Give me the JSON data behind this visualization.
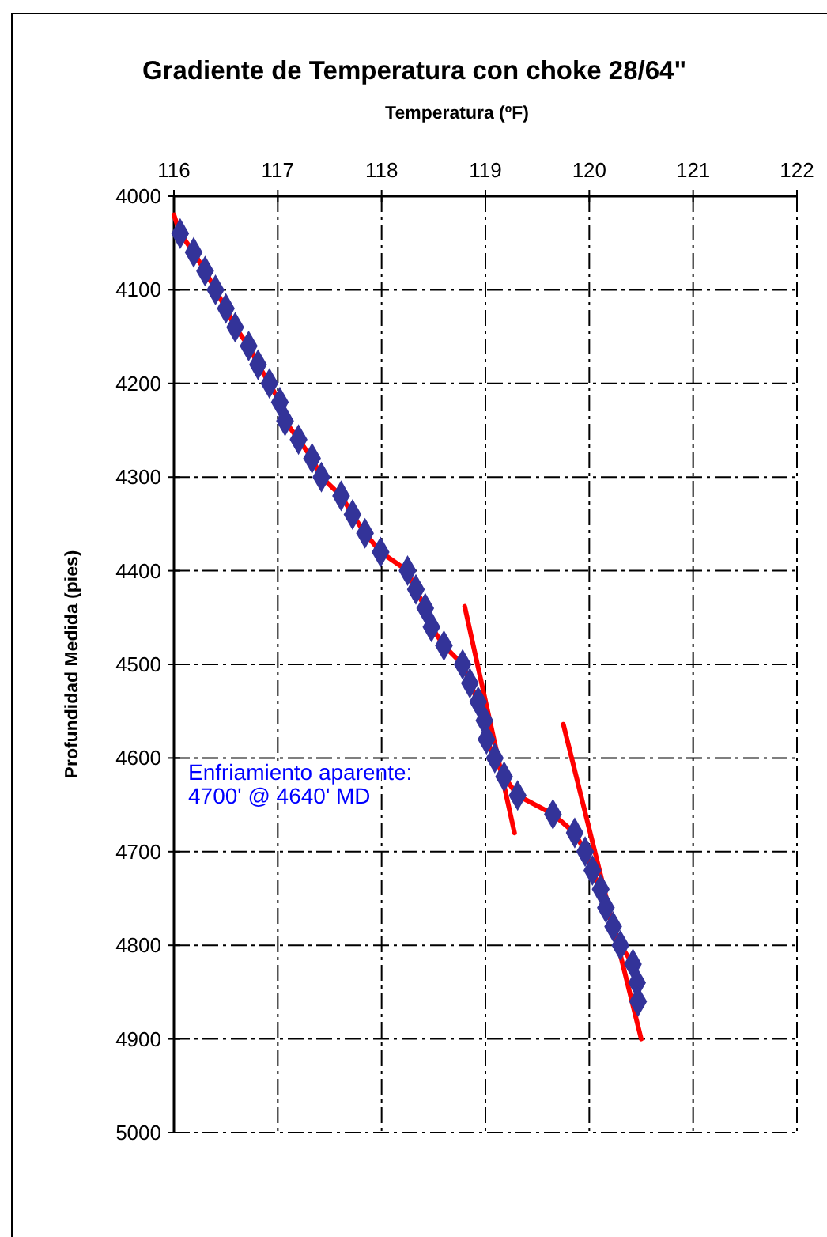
{
  "chart_data": {
    "type": "line",
    "title": "Gradiente de Temperatura con choke 28/64\"",
    "xlabel": "Temperatura (ºF)",
    "ylabel": "Profundidad Medida (pies)",
    "xlim": [
      116,
      122
    ],
    "xticks": [
      116,
      117,
      118,
      119,
      120,
      121,
      122
    ],
    "ylim": [
      5000,
      4000
    ],
    "yticks": [
      4000,
      4100,
      4200,
      4300,
      4400,
      4500,
      4600,
      4700,
      4800,
      4900,
      5000
    ],
    "grid": true,
    "annotations": [
      "Enfriamiento aparente:\n4700' @ 4640' MD"
    ],
    "series": [
      {
        "color": "#ff0000",
        "marker": "none",
        "x": [
          116.0,
          116.06,
          116.19,
          116.3,
          116.4,
          116.5,
          116.59,
          116.72,
          116.81,
          116.92,
          117.02,
          117.07,
          117.2,
          117.33,
          117.42,
          117.61,
          117.72,
          117.84,
          117.99,
          118.25,
          118.33,
          118.42,
          118.48,
          118.6,
          118.78,
          118.85,
          118.93,
          118.99,
          119.01,
          119.09,
          119.18,
          119.31,
          119.65,
          119.86,
          119.96,
          120.03,
          120.11,
          120.16,
          120.23,
          120.3,
          120.42,
          120.46,
          120.47
        ],
        "values": [
          4020,
          4040,
          4060,
          4080,
          4100,
          4120,
          4140,
          4160,
          4180,
          4200,
          4220,
          4240,
          4260,
          4280,
          4300,
          4320,
          4340,
          4360,
          4380,
          4400,
          4420,
          4440,
          4460,
          4480,
          4500,
          4520,
          4540,
          4560,
          4580,
          4600,
          4620,
          4640,
          4660,
          4680,
          4700,
          4720,
          4740,
          4760,
          4780,
          4800,
          4820,
          4840,
          4860
        ]
      },
      {
        "type": "scatter",
        "color": "#333399",
        "marker": "diamond",
        "x": [
          116.06,
          116.19,
          116.3,
          116.4,
          116.5,
          116.59,
          116.72,
          116.81,
          116.92,
          117.02,
          117.07,
          117.2,
          117.33,
          117.42,
          117.61,
          117.72,
          117.84,
          117.99,
          118.25,
          118.33,
          118.42,
          118.48,
          118.6,
          118.78,
          118.85,
          118.93,
          118.99,
          119.01,
          119.09,
          119.18,
          119.31,
          119.65,
          119.86,
          119.96,
          120.03,
          120.11,
          120.16,
          120.23,
          120.3,
          120.42,
          120.46,
          120.47
        ],
        "values": [
          4040,
          4060,
          4080,
          4100,
          4120,
          4140,
          4160,
          4180,
          4200,
          4220,
          4240,
          4260,
          4280,
          4300,
          4320,
          4340,
          4360,
          4380,
          4400,
          4420,
          4440,
          4460,
          4480,
          4500,
          4520,
          4540,
          4560,
          4580,
          4600,
          4620,
          4640,
          4660,
          4680,
          4700,
          4720,
          4740,
          4760,
          4780,
          4800,
          4820,
          4840,
          4860
        ]
      },
      {
        "color": "#ff0000",
        "marker": "none",
        "x": [
          118.8,
          119.28
        ],
        "values": [
          4438,
          4680
        ]
      },
      {
        "color": "#ff0000",
        "marker": "none",
        "x": [
          119.75,
          120.5
        ],
        "values": [
          4564,
          4900
        ]
      }
    ]
  }
}
